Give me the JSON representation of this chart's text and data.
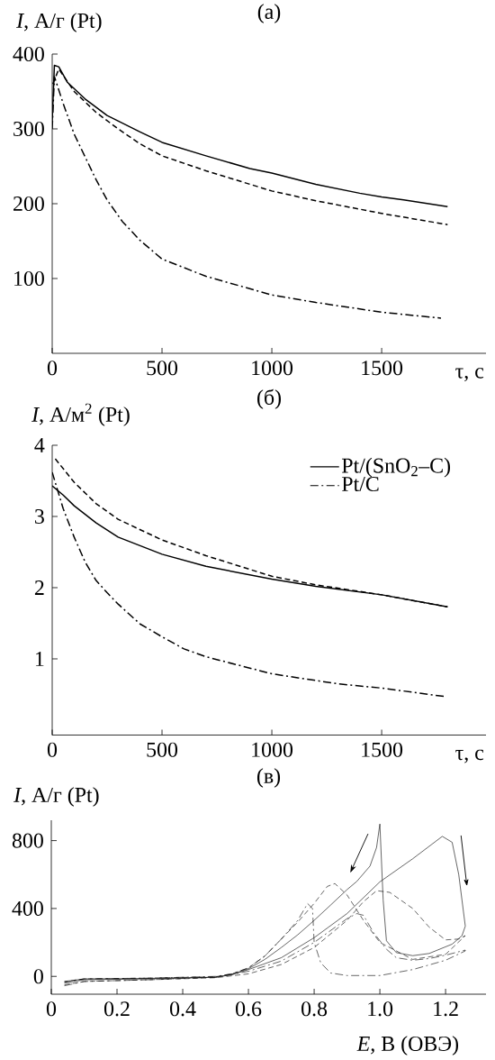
{
  "chart_data": [
    {
      "type": "line",
      "title": "(а)",
      "xlabel": "τ, с",
      "ylabel": "*I*, А/г (Pt)",
      "xlim": [
        0,
        1975
      ],
      "ylim": [
        0,
        400
      ],
      "xticks": [
        0,
        500,
        1000,
        1500
      ],
      "yticks": [
        100,
        200,
        300,
        400
      ],
      "series": [
        {
          "color": "#000000",
          "line_style": "dashed",
          "x": [
            3,
            30,
            100,
            200,
            300,
            400,
            500,
            700,
            1000,
            1200,
            1500,
            1800
          ],
          "values": [
            360,
            380,
            350,
            322,
            300,
            280,
            264,
            244,
            217,
            204,
            187,
            172
          ]
        },
        {
          "color": "#000000",
          "line_style": "solid",
          "x": [
            0,
            10,
            30,
            70,
            150,
            250,
            400,
            500,
            700,
            900,
            1000,
            1200,
            1400,
            1500,
            1600,
            1800
          ],
          "values": [
            310,
            385,
            383,
            362,
            340,
            318,
            296,
            282,
            264,
            247,
            241,
            226,
            214,
            209,
            205,
            196
          ]
        },
        {
          "color": "#000000",
          "line_style": "dashdot",
          "x": [
            0,
            10,
            50,
            100,
            200,
            250,
            320,
            400,
            500,
            700,
            1000,
            1200,
            1500,
            1770
          ],
          "values": [
            300,
            370,
            334,
            293,
            232,
            205,
            176,
            151,
            126,
            103,
            78,
            68,
            55,
            47
          ]
        }
      ]
    },
    {
      "type": "line",
      "title": "(б)",
      "xlabel": "τ, с",
      "ylabel": "*I*, А/м$^{2}$ (Pt)",
      "xlim": [
        0,
        1975
      ],
      "ylim": [
        -0.07,
        4
      ],
      "xticks": [
        0,
        500,
        1000,
        1500
      ],
      "yticks": [
        1,
        2,
        3,
        4
      ],
      "legend": "top right",
      "series": [
        {
          "color": "#000000",
          "line_style": "dashed",
          "x": [
            14,
            100,
            200,
            300,
            500,
            700,
            1000,
            1200,
            1500,
            1800
          ],
          "values": [
            3.81,
            3.48,
            3.18,
            2.96,
            2.67,
            2.45,
            2.16,
            2.04,
            1.9,
            1.73
          ]
        },
        {
          "name": "Pt/(SnO$_{2}$–C)",
          "color": "#000000",
          "line_style": "solid",
          "x": [
            0,
            50,
            100,
            200,
            300,
            500,
            700,
            1000,
            1200,
            1500,
            1800
          ],
          "values": [
            3.43,
            3.3,
            3.15,
            2.91,
            2.71,
            2.47,
            2.3,
            2.12,
            2.02,
            1.9,
            1.73
          ]
        },
        {
          "name": "Pt/C",
          "color": "#000000",
          "line_style": "dashdot",
          "x": [
            0,
            50,
            100,
            150,
            200,
            250,
            300,
            400,
            500,
            600,
            700,
            1000,
            1300,
            1500,
            1790
          ],
          "values": [
            3.62,
            3.11,
            2.71,
            2.36,
            2.1,
            1.93,
            1.77,
            1.49,
            1.31,
            1.14,
            1.03,
            0.79,
            0.65,
            0.59,
            0.47
          ]
        }
      ]
    },
    {
      "type": "line",
      "title": "(в)",
      "xlabel": "*E*, В (ОВЭ)",
      "ylabel": "*I*, А/г (Pt)",
      "xlim": [
        0,
        1.323
      ],
      "ylim": [
        -105,
        920
      ],
      "xticks": [
        0,
        0.2,
        0.4,
        0.6,
        0.8,
        {
          "value": 1.0,
          "label": "1.0"
        },
        1.2
      ],
      "yticks": [
        0,
        400,
        800
      ],
      "series": [
        {
          "color": "#000000",
          "line_style": "dashed",
          "x": [
            0.04,
            0.1,
            0.3,
            0.5,
            0.6,
            0.7,
            0.8,
            0.9,
            0.95,
            0.99,
            1.03,
            1.1,
            1.15,
            1.2,
            1.24,
            1.26,
            1.2,
            1.1,
            1.0,
            0.95,
            0.9,
            0.863,
            0.84,
            0.8,
            0.75,
            0.65,
            0.6,
            0.55,
            0.5,
            0.3,
            0.1,
            0.04
          ],
          "values": [
            -50,
            -30,
            -20,
            -8,
            15,
            70,
            170,
            330,
            440,
            505,
            495,
            400,
            290,
            215,
            220,
            240,
            130,
            100,
            200,
            330,
            480,
            547,
            530,
            430,
            320,
            120,
            50,
            15,
            -2,
            -10,
            -15,
            -30
          ]
        },
        {
          "color": "#000000",
          "line_style": "solid",
          "x": [
            0.04,
            0.1,
            0.3,
            0.5,
            0.55,
            0.6,
            0.7,
            0.8,
            0.9,
            1.0,
            1.1,
            1.19,
            1.22,
            1.24,
            1.26,
            1.25,
            1.22,
            1.15,
            1.1,
            1.05,
            1.02,
            1.01,
            1.0,
            0.99,
            0.97,
            0.93,
            0.9,
            0.85,
            0.8,
            0.75,
            0.7,
            0.65,
            0.6,
            0.55,
            0.5,
            0.3,
            0.1,
            0.04
          ],
          "values": [
            -40,
            -20,
            -15,
            -5,
            10,
            40,
            110,
            228,
            370,
            557,
            693,
            825,
            790,
            600,
            296,
            240,
            190,
            135,
            122,
            140,
            210,
            450,
            898,
            760,
            650,
            560,
            511,
            420,
            330,
            245,
            170,
            100,
            45,
            12,
            -5,
            -12,
            -15,
            -30
          ]
        },
        {
          "color": "#000000",
          "line_style": "dashdot",
          "x": [
            0.04,
            0.1,
            0.3,
            0.5,
            0.6,
            0.7,
            0.8,
            0.9,
            0.93,
            0.95,
            0.98,
            1.02,
            1.05,
            1.1,
            1.15,
            1.2,
            1.26,
            1.26,
            1.2,
            1.1,
            1.0,
            0.9,
            0.85,
            0.82,
            0.8,
            0.795,
            0.78,
            0.75,
            0.7,
            0.65,
            0.6,
            0.55,
            0.5,
            0.3,
            0.1,
            0.04
          ],
          "values": [
            -55,
            -30,
            -20,
            -5,
            30,
            90,
            200,
            340,
            370,
            360,
            260,
            160,
            110,
            95,
            105,
            125,
            155,
            150,
            95,
            40,
            5,
            5,
            20,
            80,
            200,
            400,
            429,
            330,
            220,
            120,
            50,
            15,
            0,
            -10,
            -15,
            -35
          ]
        }
      ]
    }
  ]
}
